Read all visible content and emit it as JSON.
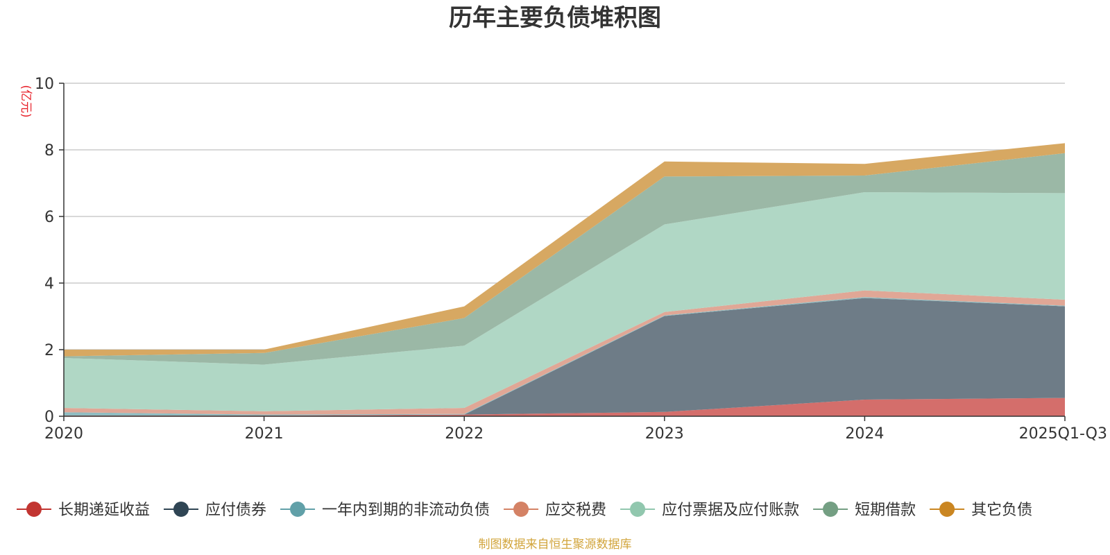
{
  "chart_data": {
    "type": "area",
    "stacked": true,
    "title": "历年主要负债堆积图",
    "ylabel": "(亿元)",
    "xlabel": "",
    "ylim": [
      0,
      10
    ],
    "yticks": [
      0,
      2,
      4,
      6,
      8,
      10
    ],
    "grid": true,
    "legend_position": "bottom",
    "categories": [
      "2020",
      "2021",
      "2022",
      "2023",
      "2024",
      "2025Q1-Q3"
    ],
    "series": [
      {
        "name": "长期递延收益",
        "color": "#c23531",
        "fill": "#d46e6b",
        "values": [
          0.02,
          0.02,
          0.05,
          0.13,
          0.5,
          0.55
        ]
      },
      {
        "name": "应付债券",
        "color": "#2f4554",
        "fill": "#6e7c87",
        "values": [
          0.0,
          0.0,
          0.0,
          2.88,
          3.05,
          2.75
        ]
      },
      {
        "name": "一年内到期的非流动负债",
        "color": "#61a0a8",
        "fill": "#8fbcc1",
        "values": [
          0.1,
          0.03,
          0.02,
          0.02,
          0.03,
          0.02
        ]
      },
      {
        "name": "应交税费",
        "color": "#d48265",
        "fill": "#e0a796",
        "values": [
          0.13,
          0.1,
          0.18,
          0.1,
          0.2,
          0.18
        ]
      },
      {
        "name": "应付票据及应付账款",
        "color": "#91c7ae",
        "fill": "#b0d7c5",
        "values": [
          1.5,
          1.4,
          1.87,
          2.63,
          2.95,
          3.2
        ]
      },
      {
        "name": "短期借款",
        "color": "#749f83",
        "fill": "#9bb8a6",
        "values": [
          0.05,
          0.35,
          0.83,
          1.44,
          0.5,
          1.2
        ]
      },
      {
        "name": "其它负债",
        "color": "#ca8622",
        "fill": "#d7a862",
        "values": [
          0.2,
          0.1,
          0.35,
          0.45,
          0.35,
          0.3
        ]
      }
    ],
    "source": "制图数据来自恒生聚源数据库"
  }
}
